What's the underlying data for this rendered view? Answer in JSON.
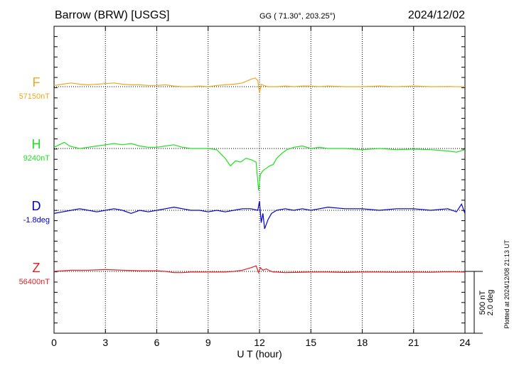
{
  "header": {
    "station": "Barrow (BRW)  [USGS]",
    "coords": "GG ( 71.30°, 203.25°)",
    "date": "2024/12/02"
  },
  "footer": {
    "xlabel": "U T (hour)",
    "plotted_note": "Plotted at 2024/12/08 21:13 UT"
  },
  "scale_bar": {
    "line1": "500 nT",
    "line2": "2.0 deg"
  },
  "colors": {
    "F": "#f0a820",
    "H": "#20e020",
    "D": "#0000d0",
    "Z": "#e02020",
    "grid": "#000000"
  },
  "chart_data": {
    "type": "line",
    "x_unit": "hour",
    "xlim": [
      0,
      24
    ],
    "xticks": [
      0,
      3,
      6,
      9,
      12,
      15,
      18,
      21,
      24
    ],
    "xtick_labels": [
      "0",
      "3",
      "6",
      "9",
      "12",
      "15",
      "18",
      "21",
      "24"
    ],
    "scale": {
      "nT_per_bar": 500,
      "deg_per_bar": 2.0
    },
    "series": [
      {
        "name": "F",
        "baseline_label": "57150nT",
        "unit": "nT",
        "x": [
          0,
          0.5,
          1,
          1.5,
          2,
          2.5,
          3,
          3.5,
          4,
          4.5,
          5,
          5.5,
          6,
          6.5,
          7,
          7.5,
          8,
          8.5,
          9,
          9.5,
          10,
          10.5,
          11,
          11.25,
          11.5,
          11.75,
          11.9,
          12,
          12.1,
          12.25,
          12.5,
          13,
          13.5,
          14,
          14.5,
          15,
          15.5,
          16,
          17,
          18,
          19,
          20,
          21,
          22,
          23,
          24
        ],
        "values": [
          57160,
          57170,
          57180,
          57170,
          57165,
          57170,
          57175,
          57180,
          57170,
          57165,
          57165,
          57160,
          57160,
          57165,
          57155,
          57150,
          57150,
          57155,
          57150,
          57160,
          57165,
          57170,
          57180,
          57195,
          57210,
          57220,
          57200,
          57100,
          57170,
          57160,
          57150,
          57150,
          57155,
          57150,
          57155,
          57155,
          57150,
          57155,
          57150,
          57150,
          57155,
          57150,
          57155,
          57150,
          57152,
          57148
        ]
      },
      {
        "name": "H",
        "baseline_label": "9240nT",
        "unit": "nT",
        "x": [
          0,
          0.3,
          0.6,
          0.9,
          1.2,
          1.5,
          2,
          2.5,
          3,
          3.5,
          4,
          4.5,
          5,
          5.5,
          6,
          6.5,
          7,
          7.5,
          8,
          8.5,
          9,
          9.5,
          10,
          10.3,
          10.6,
          10.9,
          11.2,
          11.5,
          11.8,
          11.95,
          12.05,
          12.2,
          12.4,
          12.6,
          12.8,
          13,
          13.3,
          13.6,
          14,
          14.5,
          15,
          15.5,
          16,
          17,
          18,
          19,
          20,
          21,
          22,
          23,
          23.5,
          24
        ],
        "values": [
          9250,
          9270,
          9290,
          9260,
          9250,
          9240,
          9250,
          9260,
          9270,
          9280,
          9270,
          9280,
          9260,
          9250,
          9250,
          9260,
          9270,
          9250,
          9240,
          9240,
          9240,
          9230,
          9160,
          9100,
          9140,
          9130,
          9160,
          9150,
          9130,
          8900,
          9030,
          9060,
          9080,
          9100,
          9110,
          9160,
          9200,
          9230,
          9250,
          9260,
          9240,
          9250,
          9240,
          9240,
          9230,
          9240,
          9230,
          9235,
          9230,
          9220,
          9210,
          9230
        ]
      },
      {
        "name": "D",
        "baseline_label": "-1.8deg",
        "unit": "deg",
        "x": [
          0,
          0.5,
          1,
          1.5,
          2,
          2.5,
          3,
          3.5,
          4,
          4.5,
          5,
          5.5,
          6,
          6.5,
          7,
          7.5,
          8,
          8.5,
          9,
          9.5,
          10,
          10.5,
          11,
          11.5,
          11.9,
          12,
          12.1,
          12.2,
          12.3,
          12.5,
          12.7,
          13,
          13.5,
          14,
          14.5,
          15,
          15.5,
          16,
          17,
          18,
          19,
          20,
          21,
          22,
          23,
          23.5,
          23.8,
          24
        ],
        "values": [
          -1.9,
          -1.85,
          -1.8,
          -1.75,
          -1.8,
          -1.85,
          -1.8,
          -1.75,
          -1.8,
          -1.9,
          -1.8,
          -1.85,
          -1.8,
          -1.75,
          -1.7,
          -1.75,
          -1.8,
          -1.8,
          -1.85,
          -1.8,
          -1.85,
          -1.8,
          -1.75,
          -1.75,
          -1.8,
          -1.5,
          -2.2,
          -1.9,
          -2.4,
          -2.1,
          -1.9,
          -1.8,
          -1.75,
          -1.8,
          -1.75,
          -1.8,
          -1.75,
          -1.7,
          -1.75,
          -1.75,
          -1.8,
          -1.75,
          -1.75,
          -1.8,
          -1.75,
          -1.85,
          -1.6,
          -1.9
        ]
      },
      {
        "name": "Z",
        "baseline_label": "56400nT",
        "unit": "nT",
        "x": [
          0,
          1,
          2,
          3,
          4,
          5,
          6,
          6.5,
          7,
          7.5,
          8,
          9,
          10,
          10.5,
          11,
          11.5,
          11.8,
          11.95,
          12.05,
          12.2,
          12.4,
          12.6,
          12.8,
          13,
          13.5,
          14,
          15,
          16,
          17,
          18,
          19,
          20,
          21,
          22,
          23,
          24
        ],
        "values": [
          56400,
          56410,
          56410,
          56415,
          56410,
          56405,
          56405,
          56400,
          56390,
          56390,
          56395,
          56395,
          56395,
          56400,
          56410,
          56430,
          56445,
          56390,
          56430,
          56410,
          56420,
          56405,
          56395,
          56395,
          56390,
          56392,
          56395,
          56395,
          56392,
          56395,
          56395,
          56393,
          56395,
          56393,
          56397,
          56395
        ]
      }
    ]
  }
}
